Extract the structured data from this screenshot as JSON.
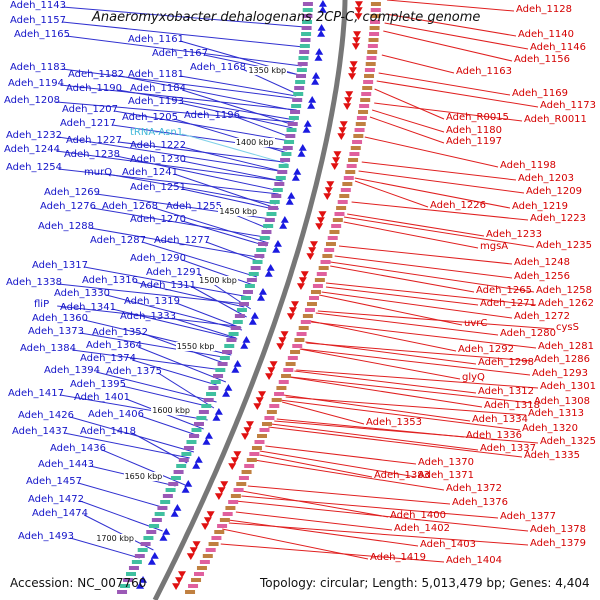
{
  "title": "Anaeromyxobacter dehalogenans 2CP-C, complete genome",
  "accession": "Accession: NC_007760",
  "summary": "Topology: circular; Length: 5,013,479 bp; Genes: 4,404",
  "kbp_marks": [
    "1350 kbp",
    "1400 kbp",
    "1450 kbp",
    "1500 kbp",
    "1550 kbp",
    "1600 kbp",
    "1650 kbp",
    "1700 kbp"
  ],
  "left_labels": [
    "Adeh_1143",
    "Adeh_1157",
    "Adeh_1165",
    "Adeh_1161",
    "Adeh_1167",
    "Adeh_1168",
    "Adeh_1183",
    "Adeh_1182",
    "Adeh_1181",
    "Adeh_1194",
    "Adeh_1190",
    "Adeh_1184",
    "Adeh_1208",
    "Adeh_1193",
    "Adeh_1207",
    "Adeh_1205",
    "Adeh_1196",
    "Adeh_1217",
    "tRNA-Asn1",
    "Adeh_1232",
    "Adeh_1227",
    "Adeh_1222",
    "Adeh_1244",
    "Adeh_1238",
    "Adeh_1230",
    "Adeh_1254",
    "murQ",
    "Adeh_1241",
    "Adeh_1251",
    "Adeh_1269",
    "Adeh_1276",
    "Adeh_1268",
    "Adeh_1255",
    "Adeh_1270",
    "Adeh_1288",
    "Adeh_1287",
    "Adeh_1277",
    "Adeh_1290",
    "Adeh_1317",
    "Adeh_1291",
    "Adeh_1338",
    "Adeh_1316",
    "Adeh_1311",
    "Adeh_1330",
    "fliP",
    "Adeh_1319",
    "Adeh_1341",
    "Adeh_1360",
    "Adeh_1333",
    "Adeh_1373",
    "Adeh_1352",
    "Adeh_1364",
    "Adeh_1384",
    "Adeh_1374",
    "Adeh_1394",
    "Adeh_1375",
    "Adeh_1395",
    "Adeh_1417",
    "Adeh_1401",
    "Adeh_1426",
    "Adeh_1406",
    "Adeh_1437",
    "Adeh_1418",
    "Adeh_1436",
    "Adeh_1443",
    "Adeh_1457",
    "Adeh_1472",
    "Adeh_1474",
    "Adeh_1493"
  ],
  "right_labels": [
    "Adeh_1128",
    "Adeh_1140",
    "Adeh_1146",
    "Adeh_1156",
    "Adeh_1163",
    "Adeh_1169",
    "Adeh_1173",
    "Adeh_R0015",
    "Adeh_R0011",
    "Adeh_1180",
    "Adeh_1197",
    "Adeh_1198",
    "Adeh_1203",
    "Adeh_1209",
    "Adeh_1226",
    "Adeh_1219",
    "Adeh_1223",
    "Adeh_1233",
    "mgsA",
    "Adeh_1235",
    "Adeh_1248",
    "Adeh_1256",
    "Adeh_1265",
    "Adeh_1258",
    "Adeh_1271",
    "Adeh_1262",
    "Adeh_1272",
    "uvrC",
    "cysS",
    "Adeh_1280",
    "Adeh_1281",
    "Adeh_1292",
    "Adeh_1286",
    "Adeh_1298",
    "Adeh_1293",
    "glyQ",
    "Adeh_1301",
    "Adeh_1312",
    "Adeh_1308",
    "Adeh_1318",
    "Adeh_1313",
    "Adeh_1353",
    "Adeh_1334",
    "Adeh_1320",
    "Adeh_1336",
    "Adeh_1325",
    "Adeh_1337",
    "Adeh_1335",
    "Adeh_1370",
    "Adeh_1383",
    "Adeh_1371",
    "Adeh_1372",
    "Adeh_1376",
    "Adeh_1377",
    "Adeh_1400",
    "Adeh_1378",
    "Adeh_1402",
    "Adeh_1379",
    "Adeh_1403",
    "Adeh_1419",
    "Adeh_1404"
  ]
}
